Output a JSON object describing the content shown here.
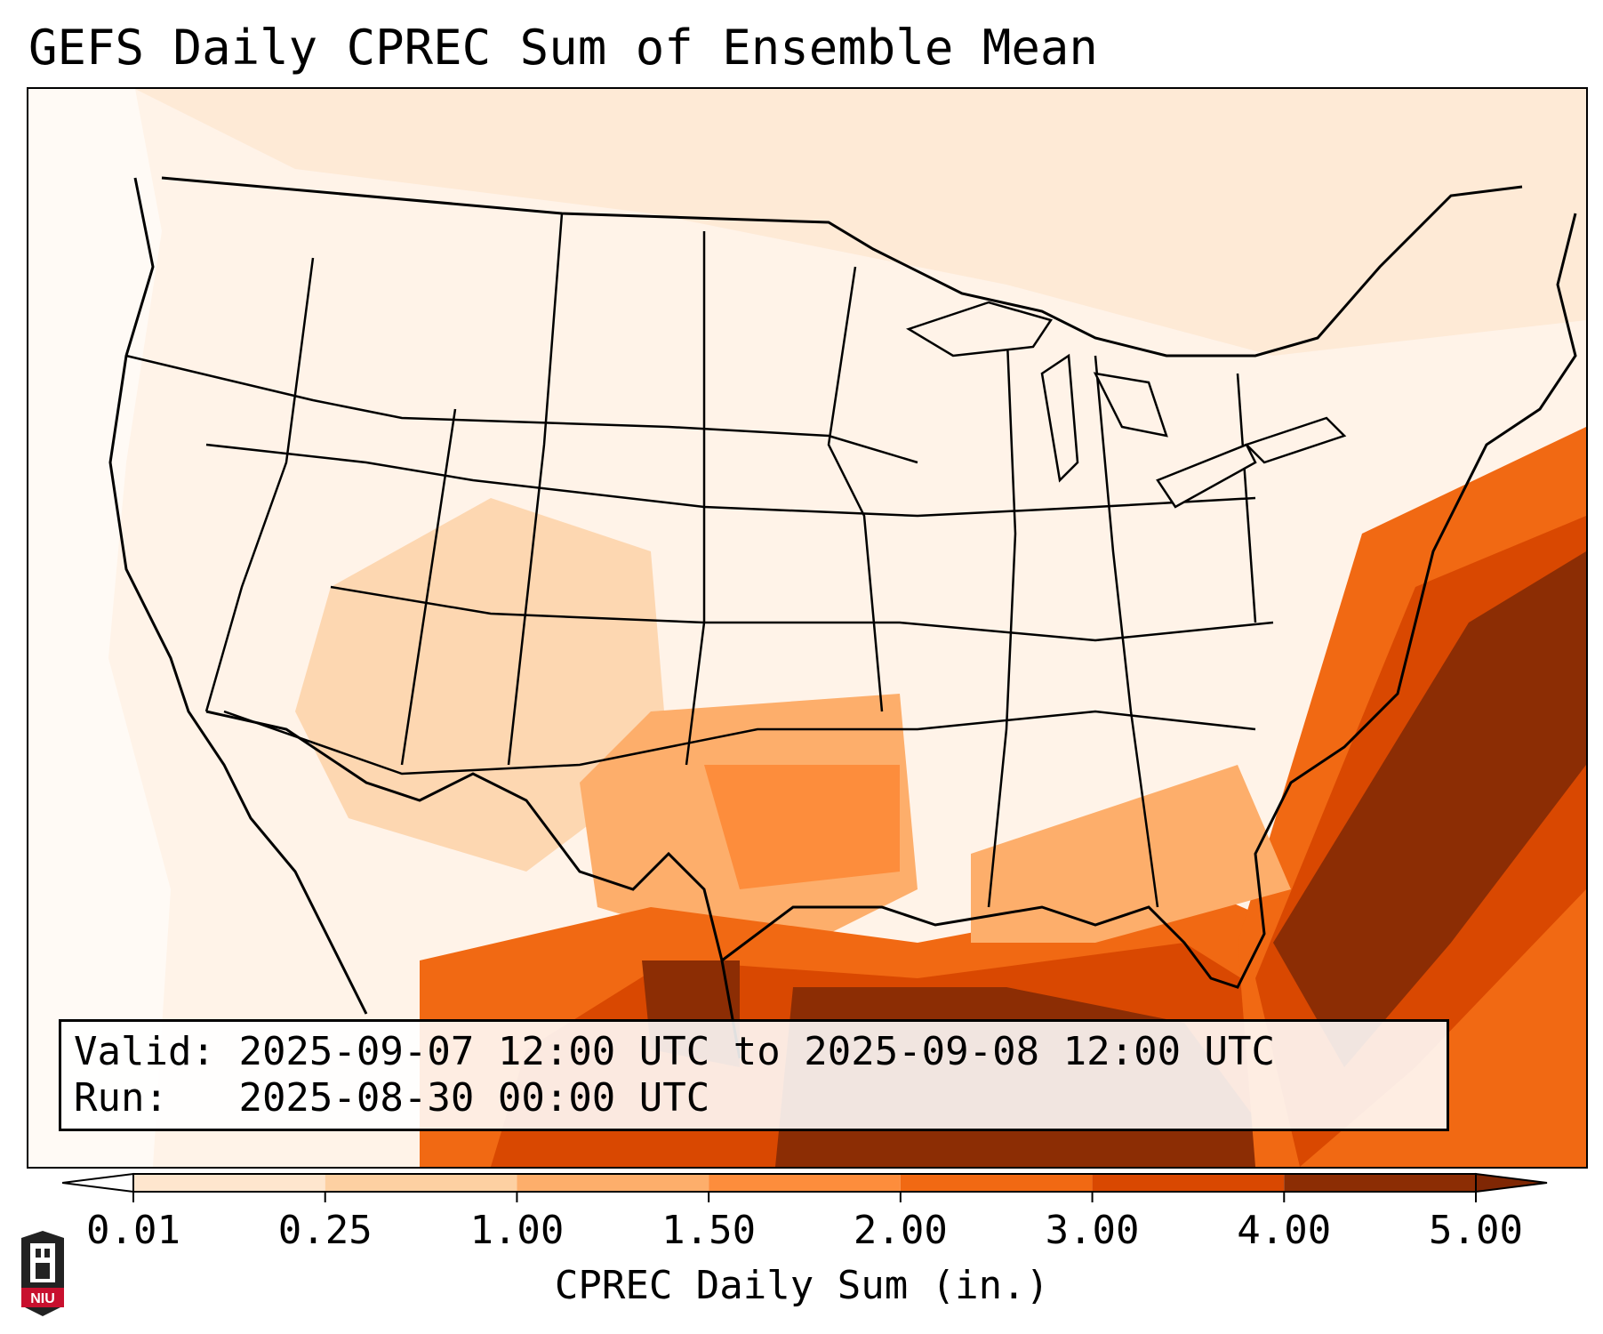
{
  "title": "GEFS Daily CPREC Sum of Ensemble Mean",
  "info": {
    "valid_label": "Valid:",
    "valid_value": "2025-09-07 12:00 UTC to 2025-09-08 12:00 UTC",
    "run_label": "Run:",
    "run_value": "2025-08-30 00:00 UTC"
  },
  "colorbar": {
    "label": "CPREC Daily Sum (in.)",
    "ticks": [
      "0.01",
      "0.25",
      "1.00",
      "1.50",
      "2.00",
      "3.00",
      "4.00",
      "5.00"
    ],
    "colors": [
      "#fff5eb",
      "#fee6ce",
      "#fdd0a2",
      "#fdae6b",
      "#fd8d3c",
      "#f16913",
      "#d94801",
      "#8c2d04"
    ],
    "under_color": "#ffffff",
    "over_color": "#7f2704"
  },
  "logo": {
    "text": "NIU",
    "colors": {
      "shield": "#c8102e",
      "tower": "#222222"
    }
  },
  "map": {
    "region": "Continental United States, northern Mexico, Gulf of Mexico",
    "heaviest_precip_color": "#8c2d04"
  }
}
